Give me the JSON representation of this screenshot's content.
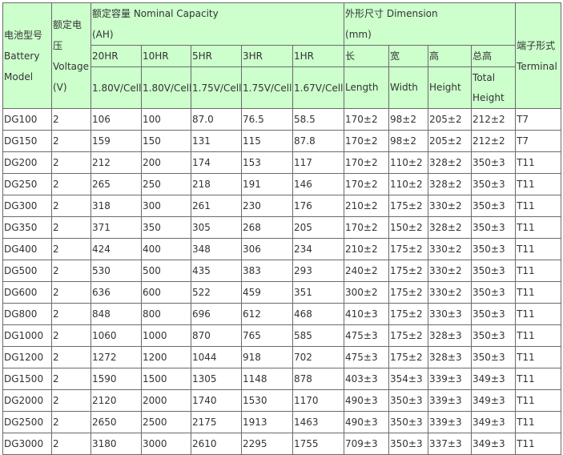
{
  "header": {
    "model": "电池型号 Battery Model",
    "voltage": "额定电压 Voltage (V)",
    "capacity": {
      "title": "额定容量 Nominal Capacity",
      "unit": "(AH)",
      "rates": [
        "20HR",
        "10HR",
        "5HR",
        "3HR",
        "1HR"
      ],
      "cutoffs": [
        "1.80V/Cell",
        "1.80V/Cell",
        "1.75V/Cell",
        "1.75V/Cell",
        "1.67V/Cell"
      ]
    },
    "dimension": {
      "title": "外形尺寸 Dimension",
      "unit": "(mm)",
      "cn": [
        "长",
        "宽",
        "高",
        "总高"
      ],
      "en": [
        "Length",
        "Width",
        "Height",
        "Total Height"
      ]
    },
    "terminal": "端子形式 Terminal"
  },
  "table": {
    "rows": [
      [
        "DG100",
        "2",
        "106",
        "100",
        "87.0",
        "76.5",
        "58.5",
        "170±2",
        "98±2",
        "205±2",
        "212±2",
        "T7"
      ],
      [
        "DG150",
        "2",
        "159",
        "150",
        "131",
        "115",
        "87.8",
        "170±2",
        "98±2",
        "205±2",
        "212±2",
        "T7"
      ],
      [
        "DG200",
        "2",
        "212",
        "200",
        "174",
        "153",
        "117",
        "170±2",
        "110±2",
        "328±2",
        "350±3",
        "T11"
      ],
      [
        "DG250",
        "2",
        "265",
        "250",
        "218",
        "191",
        "146",
        "170±2",
        "110±2",
        "328±2",
        "350±3",
        "T11"
      ],
      [
        "DG300",
        "2",
        "318",
        "300",
        "261",
        "230",
        "176",
        "210±2",
        "175±2",
        "330±2",
        "350±3",
        "T11"
      ],
      [
        "DG350",
        "2",
        "371",
        "350",
        "305",
        "268",
        "205",
        "170±2",
        "150±2",
        "328±2",
        "350±3",
        "T11"
      ],
      [
        "DG400",
        "2",
        "424",
        "400",
        "348",
        "306",
        "234",
        "210±2",
        "175±2",
        "330±2",
        "350±3",
        "T11"
      ],
      [
        "DG500",
        "2",
        "530",
        "500",
        "435",
        "383",
        "293",
        "240±2",
        "175±2",
        "330±2",
        "350±3",
        "T11"
      ],
      [
        "DG600",
        "2",
        "636",
        "600",
        "522",
        "459",
        "351",
        "300±2",
        "175±2",
        "330±2",
        "350±3",
        "T11"
      ],
      [
        "DG800",
        "2",
        "848",
        "800",
        "696",
        "612",
        "468",
        "410±3",
        "175±2",
        "330±3",
        "350±3",
        "T11"
      ],
      [
        "DG1000",
        "2",
        "1060",
        "1000",
        "870",
        "765",
        "585",
        "475±3",
        "175±2",
        "328±3",
        "350±3",
        "T11"
      ],
      [
        "DG1200",
        "2",
        "1272",
        "1200",
        "1044",
        "918",
        "702",
        "475±3",
        "175±2",
        "328±3",
        "350±3",
        "T11"
      ],
      [
        "DG1500",
        "2",
        "1590",
        "1500",
        "1305",
        "1148",
        "878",
        "403±3",
        "354±3",
        "339±3",
        "349±3",
        "T11"
      ],
      [
        "DG2000",
        "2",
        "2120",
        "2000",
        "1740",
        "1530",
        "1170",
        "490±3",
        "350±3",
        "339±3",
        "349±3",
        "T11"
      ],
      [
        "DG2500",
        "2",
        "2650",
        "2500",
        "2175",
        "1913",
        "1463",
        "490±3",
        "350±3",
        "339±3",
        "349±3",
        "T11"
      ],
      [
        "DG3000",
        "2",
        "3180",
        "3000",
        "2610",
        "2295",
        "1755",
        "709±3",
        "350±3",
        "337±3",
        "349±3",
        "T11"
      ]
    ]
  }
}
